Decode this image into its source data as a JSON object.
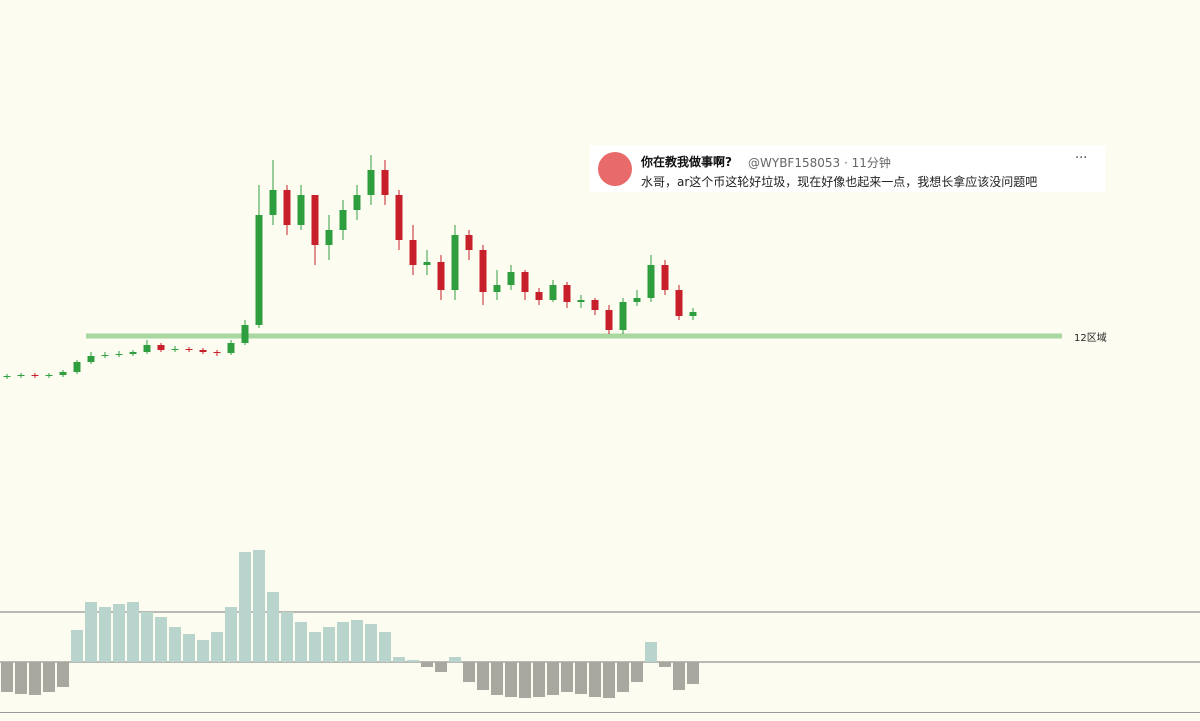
{
  "chart_data": {
    "type": "candlestick",
    "open": [
      23,
      24,
      25,
      24,
      25,
      28,
      38,
      44,
      45,
      46,
      48,
      55,
      50,
      51,
      50,
      48,
      47,
      57,
      75,
      185,
      210,
      175,
      205,
      155,
      170,
      190,
      205,
      230,
      205,
      160,
      135,
      138,
      110,
      165,
      150,
      108,
      115,
      128,
      108,
      100,
      115,
      98,
      100,
      90,
      70,
      98,
      102,
      135,
      110,
      84
    ],
    "high": [
      26,
      27,
      27,
      27,
      30,
      40,
      48,
      48,
      49,
      50,
      60,
      57,
      54,
      53,
      52,
      50,
      60,
      80,
      215,
      240,
      215,
      215,
      205,
      185,
      200,
      215,
      245,
      240,
      210,
      175,
      150,
      145,
      175,
      170,
      155,
      130,
      135,
      130,
      112,
      120,
      118,
      105,
      102,
      95,
      102,
      110,
      145,
      140,
      115,
      92
    ],
    "low": [
      21,
      22,
      22,
      22,
      23,
      26,
      36,
      42,
      43,
      44,
      46,
      48,
      48,
      48,
      46,
      44,
      45,
      55,
      72,
      175,
      165,
      170,
      135,
      140,
      160,
      180,
      195,
      195,
      150,
      125,
      125,
      100,
      100,
      140,
      95,
      100,
      110,
      100,
      95,
      98,
      92,
      92,
      85,
      66,
      66,
      94,
      98,
      105,
      80,
      80
    ],
    "close": [
      24,
      25,
      24,
      25,
      28,
      38,
      44,
      45,
      46,
      48,
      55,
      50,
      51,
      50,
      48,
      47,
      57,
      75,
      185,
      210,
      175,
      205,
      155,
      170,
      190,
      205,
      230,
      205,
      160,
      135,
      138,
      110,
      165,
      150,
      108,
      115,
      128,
      108,
      100,
      115,
      98,
      100,
      90,
      70,
      98,
      102,
      135,
      110,
      84,
      88
    ],
    "up_color": "#2e9e3e",
    "down_color": "#c8202a",
    "ylim": [
      0,
      300
    ],
    "level": {
      "value": 64,
      "label": "12区域",
      "color": "#a8d8a0"
    },
    "histogram": {
      "values": [
        -30,
        -32,
        -33,
        -30,
        -25,
        32,
        60,
        55,
        58,
        60,
        50,
        45,
        35,
        28,
        22,
        30,
        55,
        110,
        112,
        70,
        50,
        40,
        30,
        35,
        40,
        42,
        38,
        30,
        5,
        2,
        -5,
        -10,
        5,
        -20,
        -28,
        -33,
        -35,
        -36,
        -35,
        -33,
        -30,
        -32,
        -35,
        -36,
        -30,
        -20,
        20,
        -5,
        -28,
        -22
      ],
      "pos_color": "#b8d4cc",
      "neg_color": "#a8a8a0",
      "ylim": [
        -50,
        120
      ],
      "lines": [
        50,
        0
      ]
    }
  },
  "tweet": {
    "name": "你在教我做事啊?",
    "meta": "@WYBF158053 · 11分钟",
    "menu": "···",
    "text": "水哥，ar这个币这轮好垃圾，现在好像也起来一点，我想长拿应该没问题吧"
  }
}
